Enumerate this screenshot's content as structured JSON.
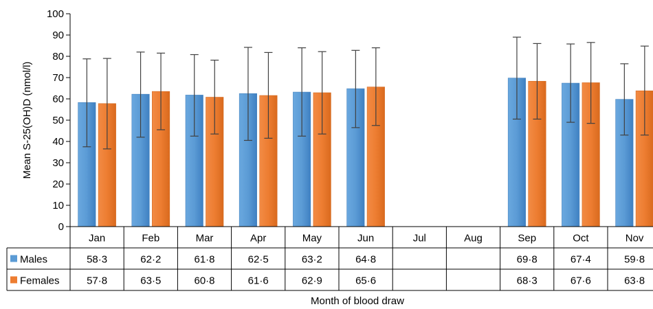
{
  "chart_data": {
    "type": "bar",
    "categories": [
      "Jan",
      "Feb",
      "Mar",
      "Apr",
      "May",
      "Jun",
      "Jul",
      "Aug",
      "Sep",
      "Oct",
      "Nov"
    ],
    "series": [
      {
        "name": "Males",
        "color": "#5b9bd5",
        "values": [
          58.3,
          62.2,
          61.8,
          62.5,
          63.2,
          64.8,
          null,
          null,
          69.8,
          67.4,
          59.8
        ],
        "value_labels": [
          "58·3",
          "62·2",
          "61·8",
          "62·5",
          "63·2",
          "64·8",
          "",
          "",
          "69·8",
          "67·4",
          "59·8"
        ],
        "error_low": [
          37.5,
          42.0,
          42.5,
          40.5,
          42.5,
          46.5,
          null,
          null,
          50.5,
          49.0,
          43.0
        ],
        "error_high": [
          78.8,
          82.0,
          80.8,
          84.2,
          84.0,
          82.8,
          null,
          null,
          89.0,
          85.8,
          76.5
        ]
      },
      {
        "name": "Females",
        "color": "#ed7d31",
        "values": [
          57.8,
          63.5,
          60.8,
          61.6,
          62.9,
          65.6,
          null,
          null,
          68.3,
          67.6,
          63.8
        ],
        "value_labels": [
          "57·8",
          "63·5",
          "60·8",
          "61·6",
          "62·9",
          "65·6",
          "",
          "",
          "68·3",
          "67·6",
          "63·8"
        ],
        "error_low": [
          36.5,
          45.5,
          43.5,
          41.5,
          43.5,
          47.5,
          null,
          null,
          50.5,
          48.5,
          43.0
        ],
        "error_high": [
          79.0,
          81.5,
          78.2,
          81.8,
          82.2,
          84.0,
          null,
          null,
          86.0,
          86.5,
          84.8
        ]
      }
    ],
    "ylabel": "Mean S-25(OH)D (nmol/l)",
    "xlabel": "Month of blood draw",
    "ylim": [
      0,
      100
    ],
    "yticks": [
      0,
      10,
      20,
      30,
      40,
      50,
      60,
      70,
      80,
      90,
      100
    ],
    "grid": false,
    "legend": "data-table-rows"
  }
}
